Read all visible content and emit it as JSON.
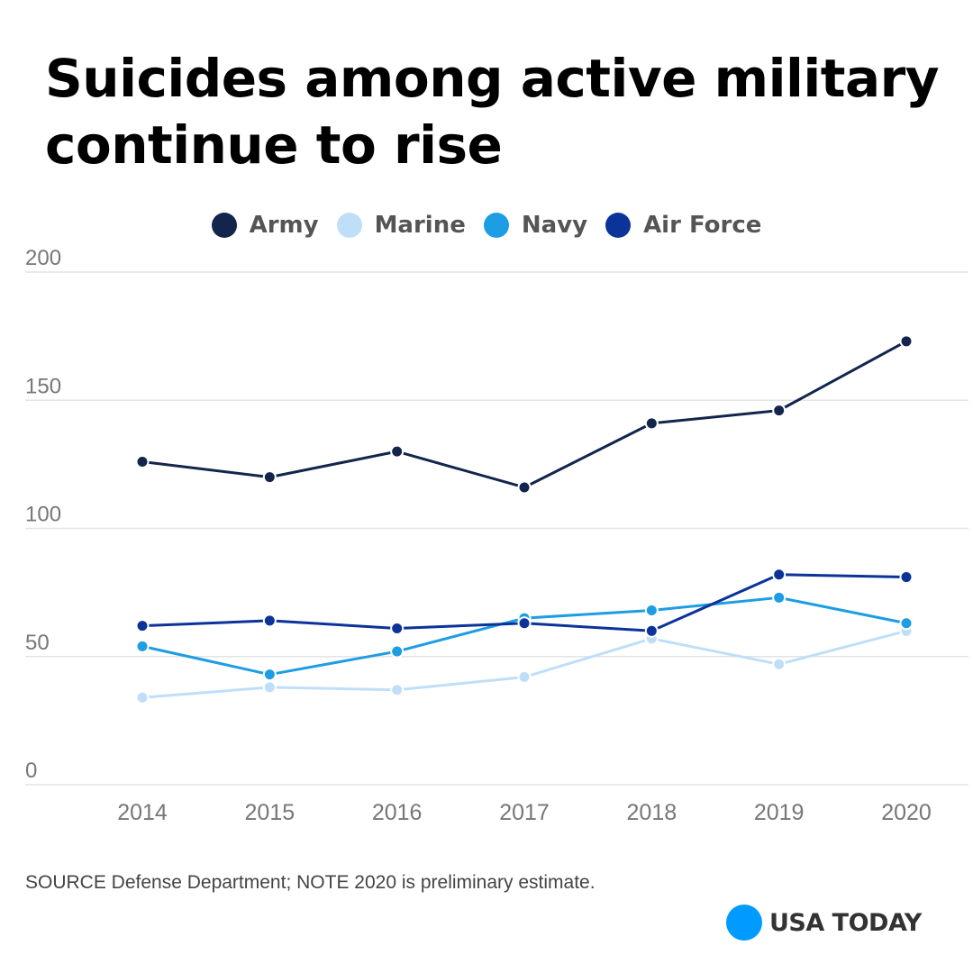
{
  "chart_data": {
    "type": "line",
    "title": "Suicides among active military continue to rise",
    "categories": [
      "2014",
      "2015",
      "2016",
      "2017",
      "2018",
      "2019",
      "2020"
    ],
    "series": [
      {
        "name": "Army",
        "color": "#13254d",
        "values": [
          126,
          120,
          130,
          116,
          141,
          146,
          173
        ]
      },
      {
        "name": "Marine",
        "color": "#bfdff8",
        "values": [
          34,
          38,
          37,
          42,
          57,
          47,
          60
        ]
      },
      {
        "name": "Navy",
        "color": "#1d9de3",
        "values": [
          54,
          43,
          52,
          65,
          68,
          73,
          63
        ]
      },
      {
        "name": "Air Force",
        "color": "#0b3399",
        "values": [
          62,
          64,
          61,
          63,
          60,
          82,
          81
        ]
      }
    ],
    "ylim": [
      0,
      200
    ],
    "yticks": [
      "0",
      "50",
      "100",
      "150",
      "200"
    ],
    "xlabel": "",
    "ylabel": "",
    "grid": true,
    "legend_position": "top-center"
  },
  "footer": {
    "source": "SOURCE Defense Department; NOTE 2020 is preliminary estimate."
  },
  "brand": {
    "name": "USA TODAY",
    "color": "#009bff"
  }
}
